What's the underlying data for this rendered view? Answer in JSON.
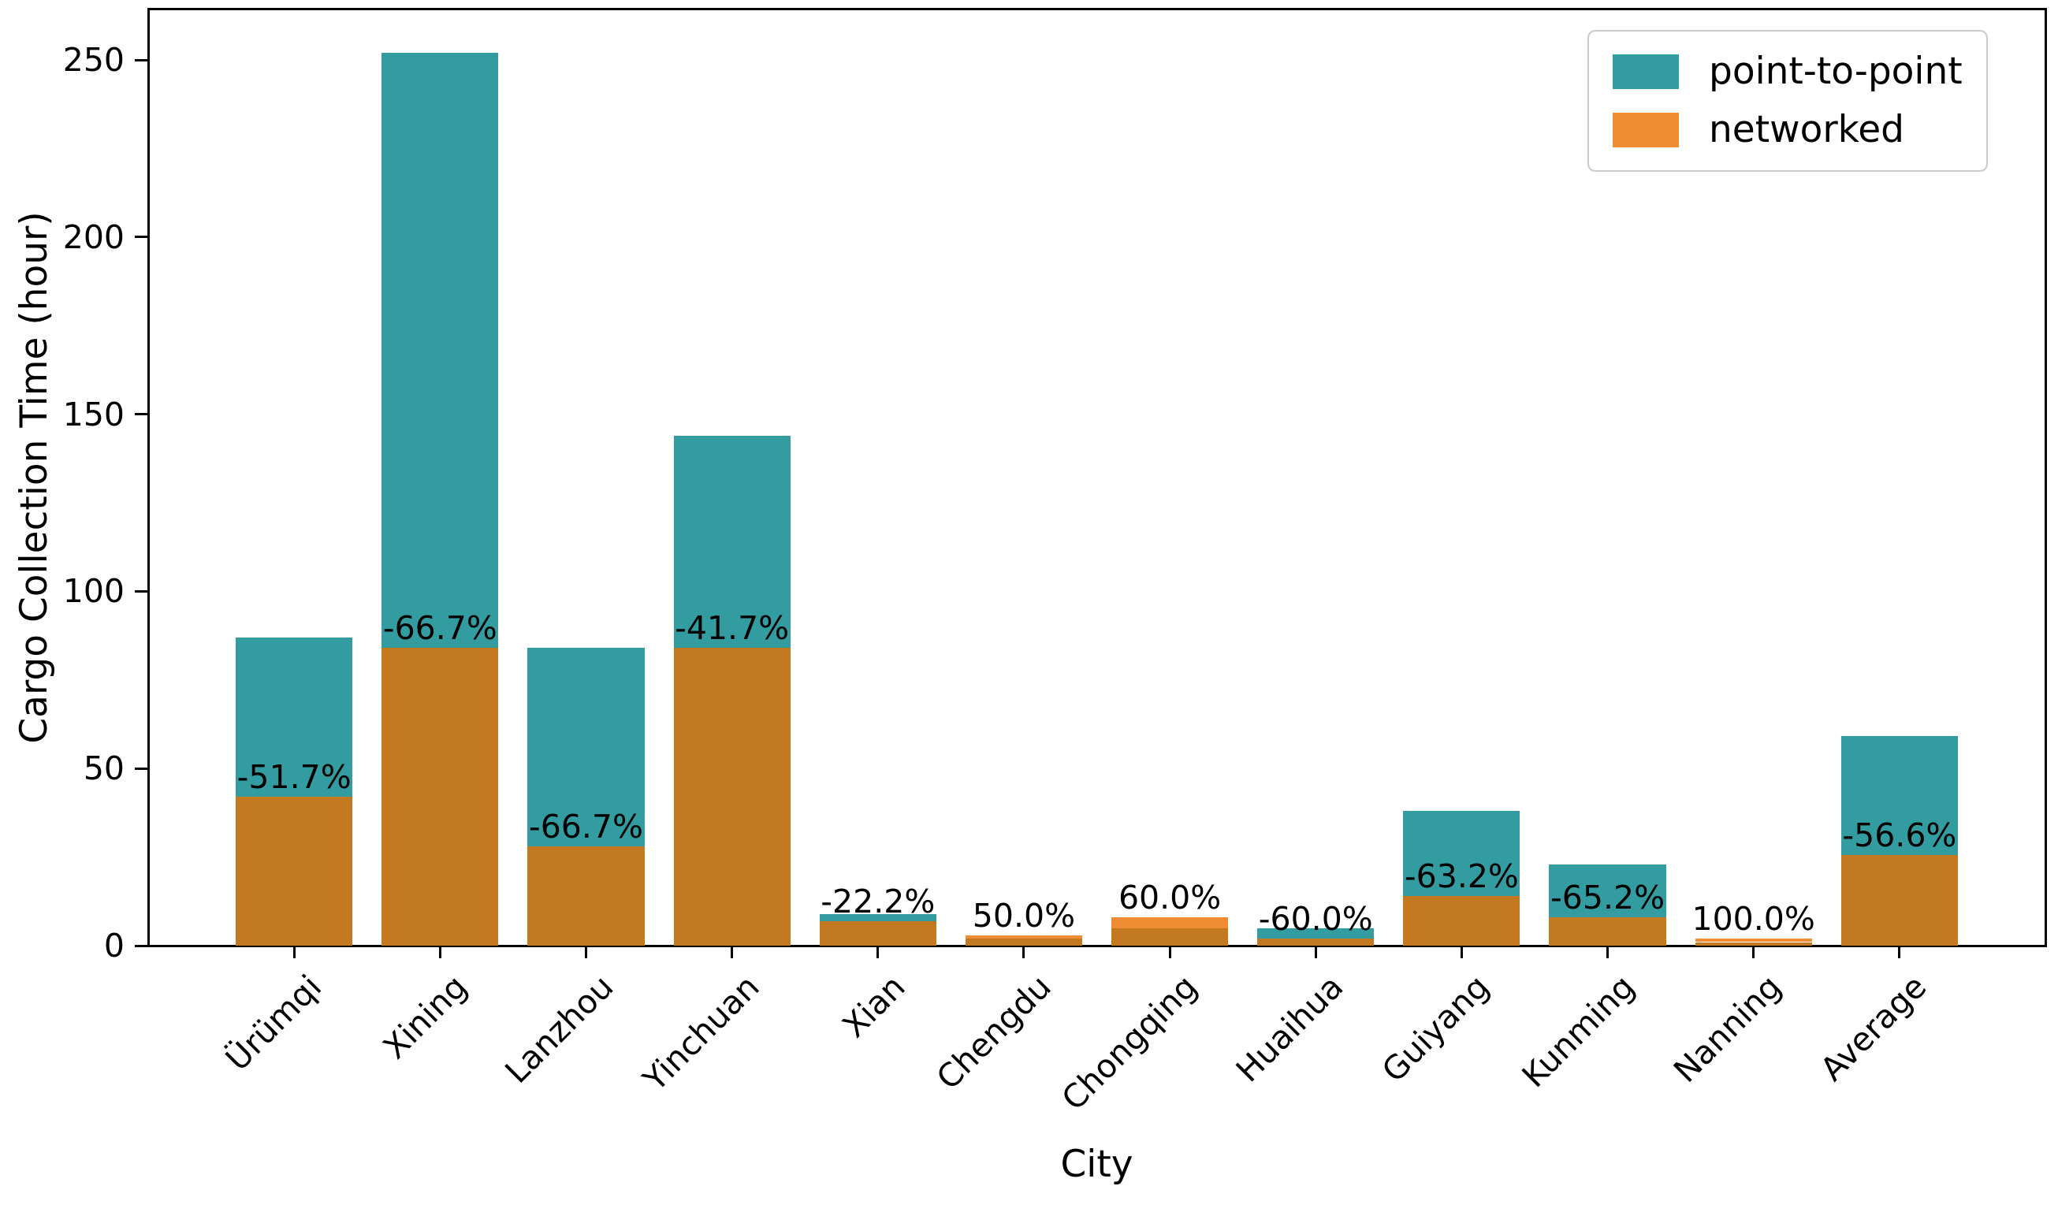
{
  "figure": {
    "background": "#ffffff"
  },
  "axes": {
    "xlabel": "City",
    "ylabel": "Cargo Collection Time (hour)",
    "spine_color": "#000000",
    "tick_color": "#000000"
  },
  "legend": {
    "position": "upper right",
    "border_color": "#cccccc",
    "items": [
      {
        "label": "point-to-point",
        "color": "#339CA0"
      },
      {
        "label": "networked",
        "color": "#F08C33"
      }
    ]
  },
  "chart_data": {
    "type": "bar",
    "bar_style": "overlaid",
    "title": "",
    "xlabel": "City",
    "ylabel": "Cargo Collection Time (hour)",
    "categories": [
      "Ürümqi",
      "Xining",
      "Lanzhou",
      "Yinchuan",
      "Xian",
      "Chengdu",
      "Chongqing",
      "Huaihua",
      "Guiyang",
      "Kunming",
      "Nanning",
      "Average"
    ],
    "series": [
      {
        "name": "point-to-point",
        "color": "#339CA0",
        "values": [
          87,
          252,
          84,
          144,
          9,
          2,
          5,
          5,
          38,
          23,
          1,
          59.1
        ]
      },
      {
        "name": "networked",
        "color": "#F08C33",
        "overlap_color": "#C37920",
        "values": [
          42,
          84,
          28,
          84,
          7,
          3,
          8,
          2,
          14,
          8,
          2,
          25.6
        ]
      }
    ],
    "bar_labels": [
      "-51.7%",
      "-66.7%",
      "-66.7%",
      "-41.7%",
      "-22.2%",
      "50.0%",
      "60.0%",
      "-60.0%",
      "-63.2%",
      "-65.2%",
      "100.0%",
      "-56.6%"
    ],
    "yticks": [
      0,
      50,
      100,
      150,
      200,
      250
    ],
    "ylim": [
      0,
      264.5
    ],
    "grid": false,
    "legend_position": "upper right"
  }
}
